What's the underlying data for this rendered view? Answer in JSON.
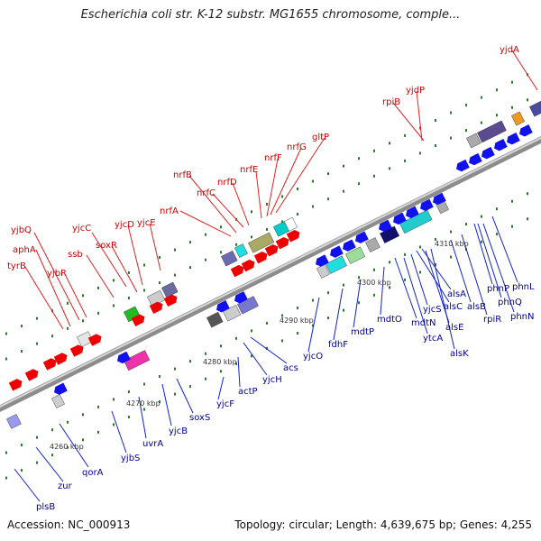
{
  "title": "Escherichia coli str. K-12 substr. MG1655 chromosome, comple...",
  "footer": {
    "accession": "Accession: NC_000913",
    "summary": "Topology: circular; Length: 4,639,675 bp; Genes: 4,255"
  },
  "colors": {
    "forward_label": "#cc0000",
    "reverse_label": "#000099",
    "backbone": "#999999",
    "tick": "#2a7a2a"
  },
  "scale_ticks": [
    "4260 kbp",
    "4270 kbp",
    "4280 kbp",
    "4290 kbp",
    "4300 kbp",
    "4310 kbp"
  ],
  "forward_genes": [
    "tyrB",
    "aphA",
    "yjbQ",
    "yjbR",
    "ssb",
    "yjcC",
    "soxR",
    "yjcD",
    "yjcE",
    "nrfA",
    "nrfB",
    "nrfC",
    "nrfD",
    "nrfE",
    "nrfF",
    "nrfG",
    "gltP",
    "rpiB",
    "yjdP",
    "yjdA"
  ],
  "reverse_genes": [
    "plsB",
    "zur",
    "qorA",
    "yjbS",
    "uvrA",
    "yjcB",
    "soxS",
    "yjcF",
    "actP",
    "yjcH",
    "acs",
    "yjcO",
    "fdhF",
    "mdtP",
    "mdtO",
    "mdtN",
    "ytcA",
    "yjcS",
    "alsC",
    "alsA",
    "alsE",
    "alsK",
    "alsB",
    "rpiR",
    "phnP",
    "phnQ",
    "phnN",
    "phnL"
  ]
}
